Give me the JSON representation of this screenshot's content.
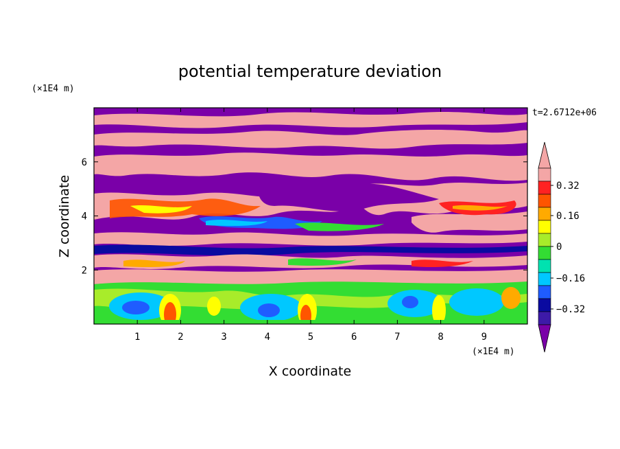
{
  "chart_data": {
    "type": "heatmap",
    "title": "potential temperature deviation",
    "time_label": "t=2.6712e+06",
    "xlabel": "X coordinate",
    "ylabel": "Z coordinate",
    "x_unit": "(×1E4 m)",
    "y_unit": "(×1E4 m)",
    "xlim": [
      0,
      10
    ],
    "ylim": [
      0,
      8
    ],
    "x_ticks": [
      "1",
      "2",
      "3",
      "4",
      "5",
      "6",
      "7",
      "8",
      "9"
    ],
    "y_ticks": [
      "2",
      "4",
      "6"
    ],
    "colorbar": {
      "levels": [
        -0.48,
        -0.4,
        -0.32,
        -0.24,
        -0.16,
        -0.08,
        0,
        0.08,
        0.16,
        0.24,
        0.32,
        0.4,
        0.48
      ],
      "colors": [
        "#7a00a8",
        "#3d1aa8",
        "#0a0aa0",
        "#1f5cff",
        "#00c8ff",
        "#00e2b0",
        "#33dd33",
        "#a8ec2a",
        "#ffff00",
        "#ffaa00",
        "#ff5500",
        "#ff2222",
        "#f4a6a6",
        "#f4a6a6"
      ],
      "extend_low_color": "#7a00a8",
      "extend_high_color": "#f4a6a6",
      "tick_labels": [
        "0.32",
        "0.16",
        "0",
        "−0.16",
        "−0.32"
      ]
    }
  }
}
